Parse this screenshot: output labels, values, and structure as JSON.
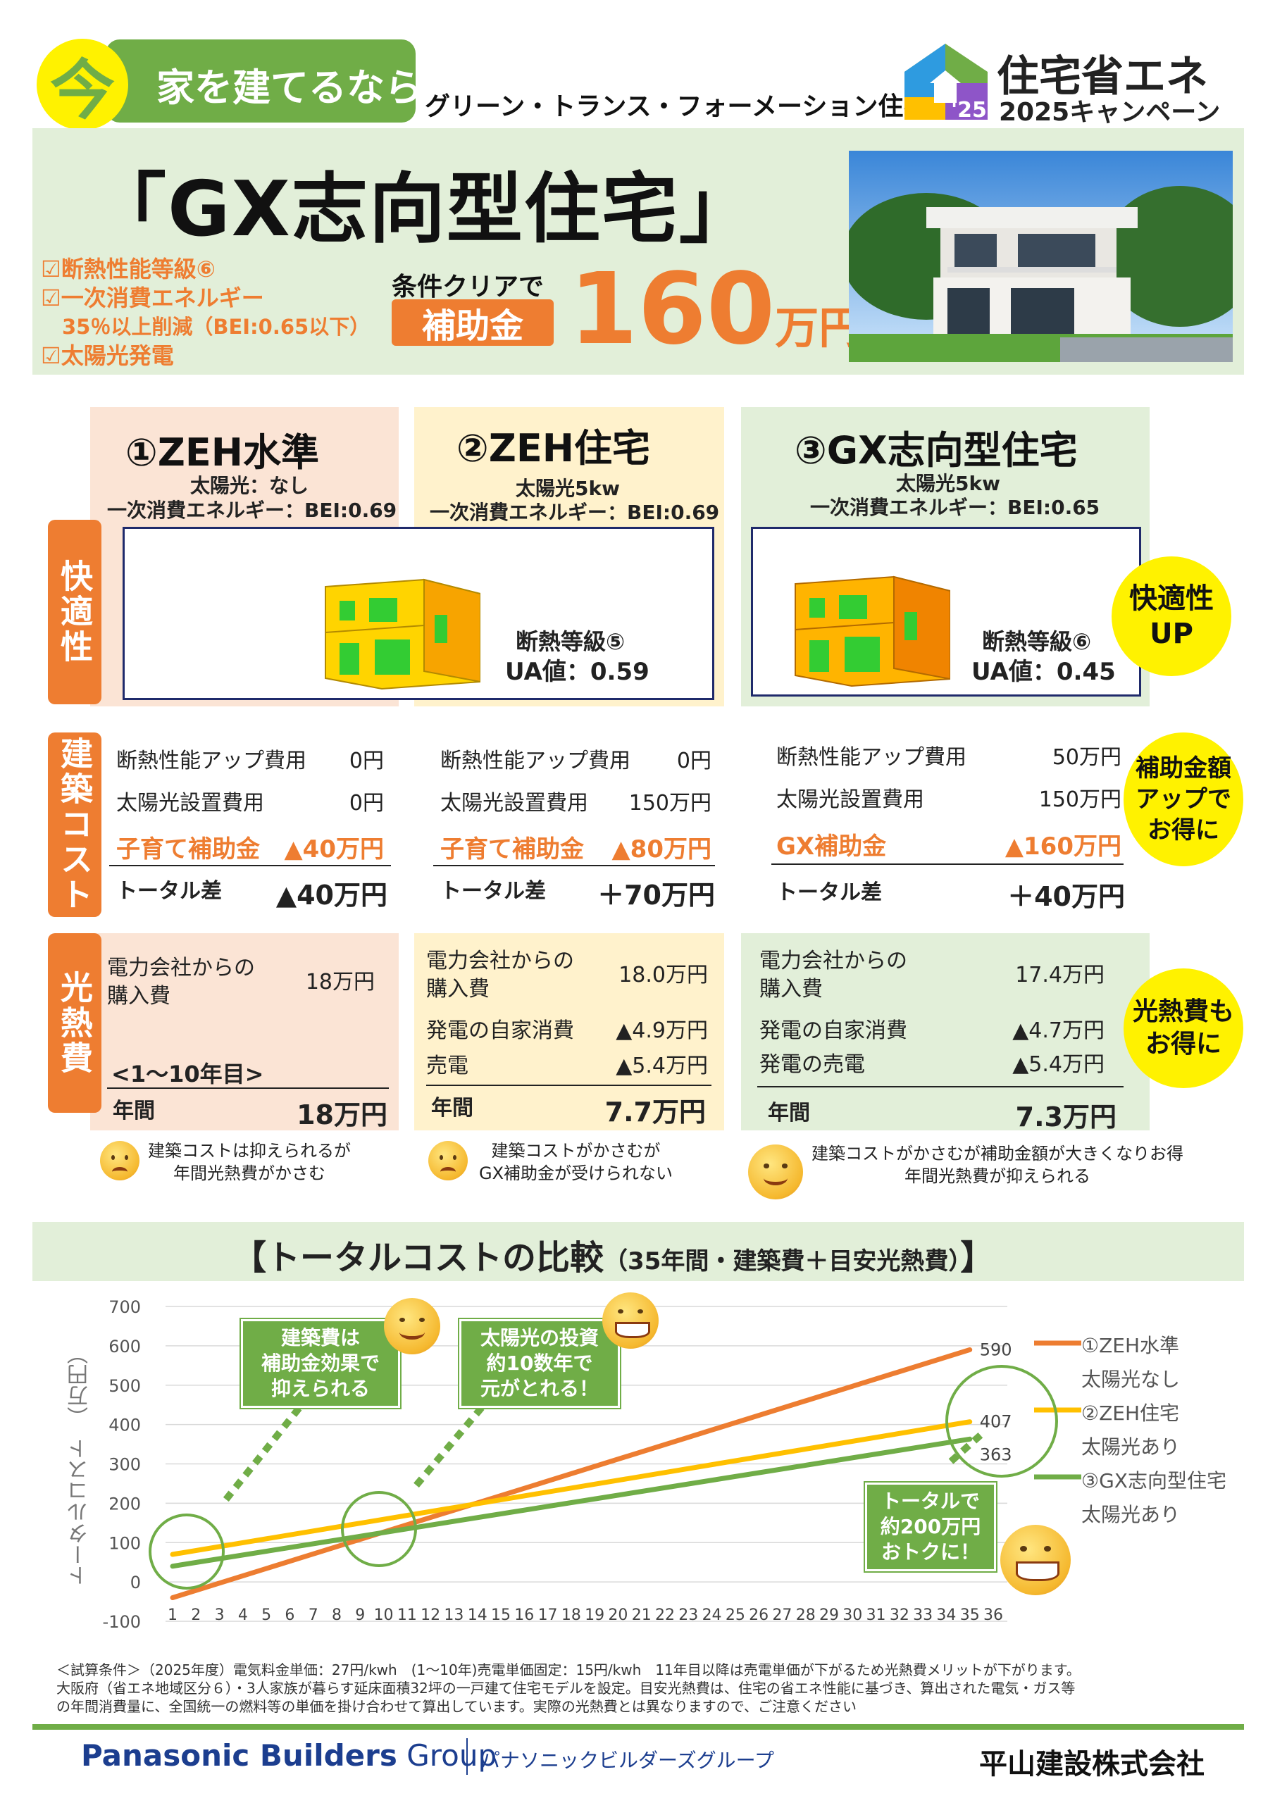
{
  "header": {
    "ima": "今",
    "tagline": "家を建てるなら",
    "subtitle": "グリーン・トランス・フォーメーション住宅！",
    "campaign_title": "住宅省エネ",
    "campaign_sub": "2025キャンペーン",
    "campaign_year": "'25"
  },
  "hero": {
    "title": "「GX志向型住宅」",
    "checks": [
      "☑断熱性能等級⑥",
      "☑一次消費エネルギー",
      "35％以上削減（BEI:0.65以下）",
      "☑太陽光発電"
    ],
    "condition": "条件クリアで",
    "subsidy_label": "補助金",
    "subsidy_amount": "160",
    "subsidy_unit": "万円"
  },
  "columns": [
    {
      "title": "①ZEH水準",
      "solar": "太陽光：なし",
      "bei": "一次消費エネルギー：BEI:0.69",
      "insulation": "",
      "ua": "",
      "costs": [
        {
          "label": "断熱性能アップ費用",
          "value": "0円"
        },
        {
          "label": "太陽光設置費用",
          "value": "0円"
        }
      ],
      "subsidy_label": "子育て補助金",
      "subsidy_value": "▲40万円",
      "total_label": "トータル差",
      "total_value": "▲40万円",
      "energy": [
        {
          "label": "電力会社からの\n購入費",
          "value": "18万円"
        }
      ],
      "period": "<1～10年目>",
      "annual_label": "年間",
      "annual_value": "18万円",
      "comment": "建築コストは抑えられるが\n年間光熱費がかさむ"
    },
    {
      "title": "②ZEH住宅",
      "solar": "太陽光5kw",
      "bei": "一次消費エネルギー：BEI:0.69",
      "insulation": "断熱等級⑤",
      "ua": "UA値：0.59",
      "costs": [
        {
          "label": "断熱性能アップ費用",
          "value": "0円"
        },
        {
          "label": "太陽光設置費用",
          "value": "150万円"
        }
      ],
      "subsidy_label": "子育て補助金",
      "subsidy_value": "▲80万円",
      "total_label": "トータル差",
      "total_value": "＋70万円",
      "energy": [
        {
          "label": "電力会社からの\n購入費",
          "value": "18.0万円"
        },
        {
          "label": "発電の自家消費",
          "value": "▲4.9万円"
        },
        {
          "label": "売電",
          "value": "▲5.4万円"
        }
      ],
      "period": "",
      "annual_label": "年間",
      "annual_value": "7.7万円",
      "comment": "建築コストがかさむが\nGX補助金が受けられない"
    },
    {
      "title": "③GX志向型住宅",
      "solar": "太陽光5kw",
      "bei": "一次消費エネルギー：BEI:0.65",
      "insulation": "断熱等級⑥",
      "ua": "UA値：0.45",
      "costs": [
        {
          "label": "断熱性能アップ費用",
          "value": "50万円"
        },
        {
          "label": "太陽光設置費用",
          "value": "150万円"
        }
      ],
      "subsidy_label": "GX補助金",
      "subsidy_value": "▲160万円",
      "total_label": "トータル差",
      "total_value": "＋40万円",
      "energy": [
        {
          "label": "電力会社からの\n購入費",
          "value": "17.4万円"
        },
        {
          "label": "発電の自家消費",
          "value": "▲4.7万円"
        },
        {
          "label": "発電の売電",
          "value": "▲5.4万円"
        }
      ],
      "period": "",
      "annual_label": "年間",
      "annual_value": "7.3万円",
      "comment": "建築コストがかさむが補助金額が大きくなりお得\n年間光熱費が抑えられる"
    }
  ],
  "side_tabs": {
    "comfort": "快適性",
    "cost": "建築コスト",
    "energy": "光熱費"
  },
  "bubbles": {
    "comfort": "快適性\nUP",
    "cost": "補助金額\nアップで\nお得に",
    "energy": "光熱費も\nお得に"
  },
  "chart_section": {
    "title": "【トータルコストの比較",
    "title_sub": "（35年間・建築費＋目安光熱費）",
    "title_end": "】",
    "ylabel": "トータルコスト　（万円）",
    "callout1": "建築費は\n補助金効果で\n抑えられる",
    "callout2": "太陽光の投資\n約10数年で\n元がとれる！",
    "callout3": "トータルで\n約200万円\nおトクに！"
  },
  "chart_data": {
    "type": "line",
    "x": [
      1,
      2,
      3,
      4,
      5,
      6,
      7,
      8,
      9,
      10,
      11,
      12,
      13,
      14,
      15,
      16,
      17,
      18,
      19,
      20,
      21,
      22,
      23,
      24,
      25,
      26,
      27,
      28,
      29,
      30,
      31,
      32,
      33,
      34,
      35,
      36
    ],
    "ylim": [
      -100,
      700
    ],
    "yticks": [
      -100,
      0,
      100,
      200,
      300,
      400,
      500,
      600,
      700
    ],
    "series": [
      {
        "name": "①ZEH水準",
        "sub": "太陽光なし",
        "color": "#ed7d31",
        "start": -40,
        "end": 590,
        "end_label": "590"
      },
      {
        "name": "②ZEH住宅",
        "sub": "太陽光あり",
        "color": "#ffc000",
        "start": 70,
        "end": 407,
        "end_label": "407"
      },
      {
        "name": "③GX志向型住宅",
        "sub": "太陽光あり",
        "color": "#70ad47",
        "start": 40,
        "end": 363,
        "end_label": "363"
      }
    ]
  },
  "footnotes": [
    "＜試算条件＞（2025年度）電気料金単価：27円/kwh　(1～10年)売電単価固定：15円/kwh　11年目以降は売電単価が下がるため光熱費メリットが下がります。",
    "大阪府（省エネ地域区分６）・3人家族が暮らす延床面積32坪の一戸建て住宅モデルを設定。目安光熱費は、住宅の省エネ性能に基づき、算出された電気・ガス等",
    "の年間消費量に、全国統一の燃料等の単価を掛け合わせて算出しています。実際の光熱費とは異なりますので、ご注意ください"
  ],
  "footer": {
    "brand": "Panasonic Builders",
    "brand_group": "Group",
    "brand_jp": "パナソニックビルダーズグループ",
    "company": "平山建設株式会社"
  }
}
